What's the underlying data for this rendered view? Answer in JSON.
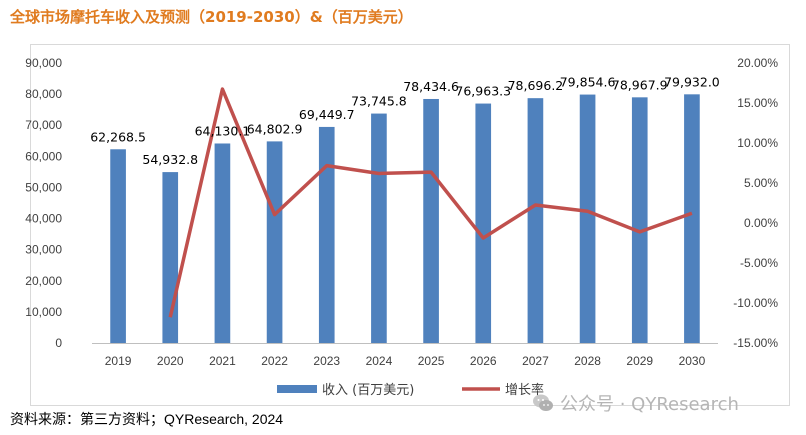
{
  "title": "全球市场摩托车收入及预测（2019-2030）&（百万美元）",
  "source": "资料来源：第三方资料；QYResearch, 2024",
  "watermark": "公众号 · QYResearch",
  "colors": {
    "bar": "#4f81bd",
    "line": "#c0504d",
    "title": "#e07b1f",
    "grid": "#d9d9d9",
    "text": "#404040"
  },
  "chart_data": {
    "type": "bar",
    "title": "",
    "categories": [
      "2019",
      "2020",
      "2021",
      "2022",
      "2023",
      "2024",
      "2025",
      "2026",
      "2027",
      "2028",
      "2029",
      "2030"
    ],
    "series": [
      {
        "name": "收入 (百万美元)",
        "type": "bar",
        "axis": "left",
        "values": [
          62268.5,
          54932.8,
          64130.1,
          64802.9,
          69449.7,
          73745.8,
          78434.6,
          76963.3,
          78696.2,
          79854.6,
          78967.9,
          79932.0
        ],
        "labels": [
          "62,268.5",
          "54,932.8",
          "64,130.1",
          "64,802.9",
          "69,449.7",
          "73,745.8",
          "78,434.6",
          "76,963.3",
          "78,696.2",
          "79,854.6",
          "78,967.9",
          "79,932.0"
        ]
      },
      {
        "name": "增长率",
        "type": "line",
        "axis": "right",
        "values": [
          null,
          -0.1178,
          0.1674,
          0.0105,
          0.0717,
          0.0619,
          0.0636,
          -0.0188,
          0.0225,
          0.0147,
          -0.0111,
          0.0122
        ]
      }
    ],
    "ylim_left": [
      0,
      90000
    ],
    "yticks_left": [
      "0",
      "10,000",
      "20,000",
      "30,000",
      "40,000",
      "50,000",
      "60,000",
      "70,000",
      "80,000",
      "90,000"
    ],
    "ylim_right": [
      -0.15,
      0.2
    ],
    "yticks_right": [
      "-15.00%",
      "-10.00%",
      "-5.00%",
      "0.00%",
      "5.00%",
      "10.00%",
      "15.00%",
      "20.00%"
    ],
    "legend_position": "bottom"
  }
}
